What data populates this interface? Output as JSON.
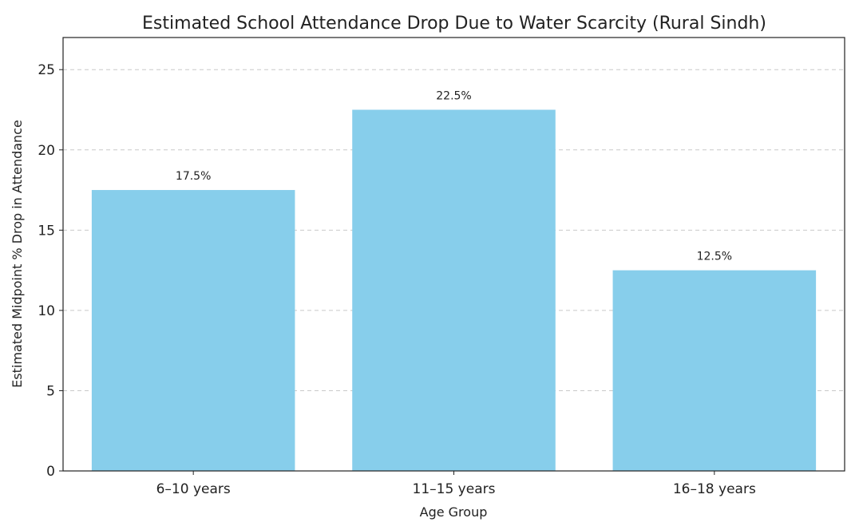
{
  "chart_data": {
    "type": "bar",
    "title": "Estimated School Attendance Drop Due to Water Scarcity (Rural Sindh)",
    "xlabel": "Age Group",
    "ylabel": "Estimated Midpoint % Drop in Attendance",
    "categories": [
      "6–10 years",
      "11–15 years",
      "16–18 years"
    ],
    "values": [
      17.5,
      22.5,
      12.5
    ],
    "data_labels": [
      "17.5%",
      "22.5%",
      "12.5%"
    ],
    "ylim": [
      0,
      27
    ],
    "yticks": [
      0,
      5,
      10,
      15,
      20,
      25
    ],
    "grid": "horizontal dashed",
    "legend": "none",
    "bar_color": "#87CEEB"
  }
}
